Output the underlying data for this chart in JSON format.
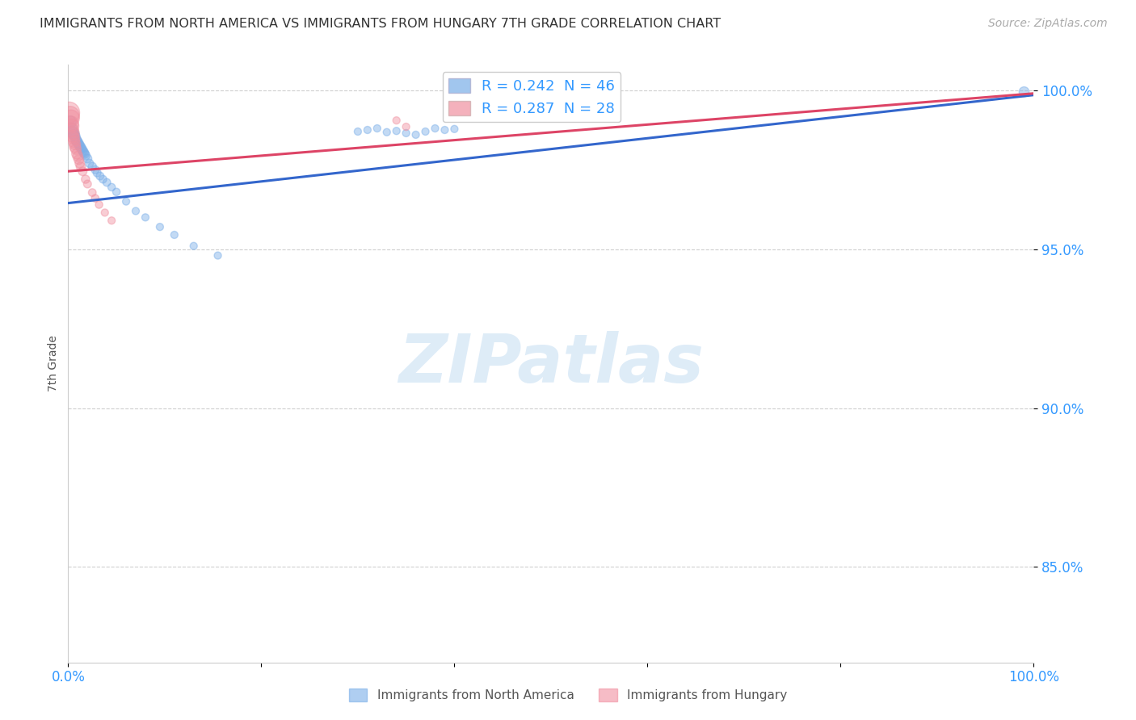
{
  "title": "IMMIGRANTS FROM NORTH AMERICA VS IMMIGRANTS FROM HUNGARY 7TH GRADE CORRELATION CHART",
  "source": "Source: ZipAtlas.com",
  "ylabel": "7th Grade",
  "xlim": [
    0.0,
    1.0
  ],
  "ylim": [
    0.82,
    1.008
  ],
  "ytick_positions": [
    0.85,
    0.9,
    0.95,
    1.0
  ],
  "ytick_labels": [
    "85.0%",
    "90.0%",
    "95.0%",
    "100.0%"
  ],
  "blue_label": "Immigrants from North America",
  "pink_label": "Immigrants from Hungary",
  "R_blue": 0.242,
  "N_blue": 46,
  "R_pink": 0.287,
  "N_pink": 28,
  "legend_text_color": "#3399ff",
  "title_color": "#333333",
  "axis_label_color": "#555555",
  "tick_color": "#3399ff",
  "grid_color": "#bbbbbb",
  "blue_color": "#7aaee8",
  "pink_color": "#f090a0",
  "blue_line_color": "#3366cc",
  "pink_line_color": "#dd4466",
  "watermark_color": "#d0e4f5",
  "blue_line_x": [
    0.0,
    1.0
  ],
  "blue_line_y": [
    0.9645,
    0.9985
  ],
  "pink_line_x": [
    0.0,
    1.0
  ],
  "pink_line_y": [
    0.9745,
    0.999
  ],
  "blue_points_x": [
    0.002,
    0.003,
    0.004,
    0.005,
    0.006,
    0.007,
    0.008,
    0.009,
    0.01,
    0.011,
    0.012,
    0.013,
    0.014,
    0.015,
    0.016,
    0.017,
    0.018,
    0.02,
    0.022,
    0.025,
    0.028,
    0.03,
    0.033,
    0.036,
    0.04,
    0.045,
    0.05,
    0.06,
    0.07,
    0.08,
    0.095,
    0.11,
    0.13,
    0.155,
    0.3,
    0.31,
    0.32,
    0.33,
    0.34,
    0.35,
    0.36,
    0.37,
    0.38,
    0.39,
    0.4,
    0.99
  ],
  "blue_points_y": [
    0.99,
    0.988,
    0.987,
    0.9865,
    0.986,
    0.9855,
    0.9845,
    0.984,
    0.9835,
    0.983,
    0.9825,
    0.982,
    0.9815,
    0.981,
    0.9805,
    0.98,
    0.9795,
    0.9785,
    0.977,
    0.976,
    0.975,
    0.974,
    0.973,
    0.972,
    0.971,
    0.9695,
    0.968,
    0.965,
    0.962,
    0.96,
    0.957,
    0.9545,
    0.951,
    0.948,
    0.987,
    0.9875,
    0.988,
    0.9868,
    0.9872,
    0.9865,
    0.986,
    0.987,
    0.988,
    0.9875,
    0.9878,
    0.9995
  ],
  "blue_sizes": [
    120,
    110,
    100,
    95,
    90,
    85,
    85,
    80,
    80,
    75,
    75,
    75,
    70,
    70,
    70,
    65,
    65,
    60,
    55,
    55,
    50,
    50,
    50,
    48,
    48,
    45,
    45,
    42,
    42,
    42,
    42,
    42,
    42,
    42,
    42,
    42,
    42,
    42,
    42,
    42,
    42,
    42,
    42,
    42,
    42,
    80
  ],
  "pink_points_x": [
    0.001,
    0.002,
    0.003,
    0.003,
    0.004,
    0.004,
    0.005,
    0.005,
    0.006,
    0.006,
    0.007,
    0.007,
    0.008,
    0.009,
    0.01,
    0.011,
    0.012,
    0.013,
    0.015,
    0.018,
    0.02,
    0.025,
    0.028,
    0.032,
    0.038,
    0.045,
    0.34,
    0.35
  ],
  "pink_points_y": [
    0.993,
    0.992,
    0.9912,
    0.9895,
    0.9888,
    0.9875,
    0.9865,
    0.9855,
    0.9848,
    0.9838,
    0.983,
    0.9822,
    0.9815,
    0.98,
    0.9792,
    0.9782,
    0.977,
    0.976,
    0.9745,
    0.972,
    0.9705,
    0.9678,
    0.966,
    0.964,
    0.9615,
    0.959,
    0.9905,
    0.9885
  ],
  "pink_sizes": [
    350,
    280,
    220,
    180,
    150,
    140,
    130,
    120,
    110,
    105,
    100,
    95,
    90,
    85,
    80,
    75,
    70,
    65,
    60,
    55,
    50,
    48,
    46,
    44,
    42,
    42,
    42,
    42
  ]
}
